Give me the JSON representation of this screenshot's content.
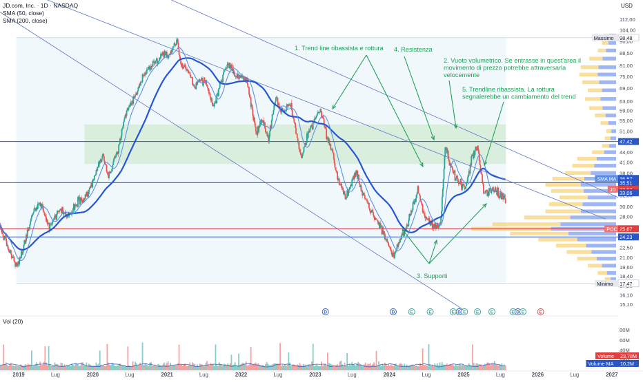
{
  "header": {
    "symbol_line": "JD.com, Inc. · 1D · NASDAQ",
    "sma50_line": "SMA (50, close)",
    "sma200_line": "SMA (200, close)",
    "currency": "USD",
    "volume_label": "Vol (20)"
  },
  "colors": {
    "up": "#26a69a",
    "down": "#ef5350",
    "sma50": "#5b8ee6",
    "sma200": "#2455d4",
    "trendline": "#5a76c8",
    "annotation": "#22a05a",
    "zone_green": "#d6ecd8",
    "zone_blue": "#e3f2f8",
    "profile_yellow": "#f7d47a",
    "profile_blue": "#7f9ef0",
    "poc_red": "#e04040",
    "level_blue": "#2a56c6"
  },
  "chart_data": {
    "type": "candlestick",
    "title": "JD.com, Inc. · 1D · NASDAQ",
    "y_axis_scale": "log",
    "ylim": [
      14.1,
      120
    ],
    "xlim": [
      "2018-10-01",
      "2027-02-01"
    ],
    "grid": false,
    "y_tick_labels": [
      "112,00",
      "104,00",
      "96,00",
      "88,50",
      "81,00",
      "75,00",
      "69,00",
      "63,00",
      "59,00",
      "55,00",
      "51,00",
      "47,00",
      "44,00",
      "41,00",
      "38,00",
      "35,00",
      "32,50",
      "30,00",
      "28,00",
      "25,80",
      "24,00",
      "22,50",
      "21,00",
      "19,60",
      "18,40",
      "17,20",
      "16,10",
      "15,10"
    ],
    "y_ticks": [
      112,
      104,
      96,
      88.5,
      81,
      75,
      69,
      63,
      59,
      55,
      51,
      47,
      44,
      41,
      38,
      35,
      32.5,
      30,
      28,
      25.8,
      24,
      22.5,
      21,
      19.6,
      18.4,
      17.2,
      16.1,
      15.1
    ],
    "x_ticks": [
      {
        "label": "2019",
        "date": "2019-01-01"
      },
      {
        "label": "Lug",
        "date": "2019-07-01"
      },
      {
        "label": "2020",
        "date": "2020-01-01"
      },
      {
        "label": "Lug",
        "date": "2020-07-01"
      },
      {
        "label": "2021",
        "date": "2021-01-01"
      },
      {
        "label": "Lug",
        "date": "2021-07-01"
      },
      {
        "label": "2022",
        "date": "2022-01-01"
      },
      {
        "label": "Lug",
        "date": "2022-07-01"
      },
      {
        "label": "2023",
        "date": "2023-01-01"
      },
      {
        "label": "Lug",
        "date": "2023-07-01"
      },
      {
        "label": "2024",
        "date": "2024-01-01"
      },
      {
        "label": "Lug",
        "date": "2024-07-01"
      },
      {
        "label": "2025",
        "date": "2025-01-01"
      },
      {
        "label": "Lug",
        "date": "2025-07-01"
      },
      {
        "label": "2026",
        "date": "2026-01-01"
      },
      {
        "label": "Lug",
        "date": "2026-07-01"
      },
      {
        "label": "2027",
        "date": "2027-01-01"
      }
    ],
    "price_path": [
      [
        "2018-10-01",
        26
      ],
      [
        "2018-11-15",
        22
      ],
      [
        "2018-12-24",
        19.5
      ],
      [
        "2019-01-20",
        22
      ],
      [
        "2019-03-15",
        29
      ],
      [
        "2019-04-20",
        31
      ],
      [
        "2019-06-01",
        26
      ],
      [
        "2019-07-20",
        29.5
      ],
      [
        "2019-09-01",
        28
      ],
      [
        "2019-10-15",
        31
      ],
      [
        "2019-12-10",
        33
      ],
      [
        "2020-01-15",
        38
      ],
      [
        "2020-02-20",
        43
      ],
      [
        "2020-03-18",
        37
      ],
      [
        "2020-05-01",
        44
      ],
      [
        "2020-06-15",
        58
      ],
      [
        "2020-08-01",
        66
      ],
      [
        "2020-09-01",
        74
      ],
      [
        "2020-10-15",
        81
      ],
      [
        "2020-12-01",
        86
      ],
      [
        "2021-01-15",
        88
      ],
      [
        "2021-02-17",
        97
      ],
      [
        "2021-03-10",
        82
      ],
      [
        "2021-04-15",
        78
      ],
      [
        "2021-05-15",
        70
      ],
      [
        "2021-06-15",
        74
      ],
      [
        "2021-07-15",
        70
      ],
      [
        "2021-08-20",
        60
      ],
      [
        "2021-09-20",
        72
      ],
      [
        "2021-10-25",
        82
      ],
      [
        "2021-12-01",
        76
      ],
      [
        "2022-01-10",
        74
      ],
      [
        "2022-02-01",
        72
      ],
      [
        "2022-03-15",
        50
      ],
      [
        "2022-04-15",
        56
      ],
      [
        "2022-05-15",
        48
      ],
      [
        "2022-06-20",
        64
      ],
      [
        "2022-07-20",
        58
      ],
      [
        "2022-09-01",
        62
      ],
      [
        "2022-10-25",
        42
      ],
      [
        "2022-11-25",
        50
      ],
      [
        "2023-01-25",
        60
      ],
      [
        "2023-02-25",
        50
      ],
      [
        "2023-03-25",
        44
      ],
      [
        "2023-04-25",
        36
      ],
      [
        "2023-06-01",
        32
      ],
      [
        "2023-07-20",
        38
      ],
      [
        "2023-08-25",
        33
      ],
      [
        "2023-10-15",
        28
      ],
      [
        "2023-11-20",
        26
      ],
      [
        "2024-01-22",
        21
      ],
      [
        "2024-02-10",
        23
      ],
      [
        "2024-03-25",
        26
      ],
      [
        "2024-05-20",
        34
      ],
      [
        "2024-06-20",
        28
      ],
      [
        "2024-08-10",
        26
      ],
      [
        "2024-09-10",
        27
      ],
      [
        "2024-10-03",
        46
      ],
      [
        "2024-10-25",
        40
      ],
      [
        "2024-12-01",
        36
      ],
      [
        "2025-01-10",
        34
      ],
      [
        "2025-02-15",
        43
      ],
      [
        "2025-03-10",
        46
      ],
      [
        "2025-04-10",
        33
      ],
      [
        "2025-05-15",
        34
      ],
      [
        "2025-06-20",
        33
      ],
      [
        "2025-07-15",
        32.5
      ],
      [
        "2025-07-28",
        31.5
      ]
    ],
    "last_price": 33.92,
    "horizontal_levels": [
      {
        "price": 47.42,
        "label": "47,42",
        "style": "solid-blue"
      },
      {
        "price": 35.51,
        "label": "35,51",
        "style": "solid-blue"
      },
      {
        "price": 25.67,
        "label": "25,67",
        "style": "solid-red"
      },
      {
        "price": 24.23,
        "label": "24,23",
        "style": "solid-blue"
      }
    ],
    "range_box": {
      "date_start": "2018-12-20",
      "date_end": "2025-07-28",
      "price_high": 98.48,
      "price_low": 17.47
    },
    "zone_green": {
      "date_start": "2020-01-01",
      "date_end": "2025-07-28",
      "price_high": 53.5,
      "price_low": 40.5
    },
    "trendlines": [
      {
        "p1": [
          "2019-01-15",
          138
        ],
        "p2": [
          "2026-12-01",
          27.5
        ]
      },
      {
        "p1": [
          "2020-10-01",
          138
        ],
        "p2": [
          "2027-02-01",
          32
        ]
      },
      {
        "p1": [
          "2018-10-01",
          118
        ],
        "p2": [
          "2025-01-01",
          14.5
        ]
      }
    ],
    "price_labels": [
      {
        "name": "massimo",
        "text": "Massimo",
        "value": "98,48",
        "price": 98.48
      },
      {
        "name": "minimo",
        "text": "Minimo",
        "value": "17,47",
        "price": 17.47
      },
      {
        "name": "level",
        "text": "",
        "value": "47,42",
        "price": 47.42
      },
      {
        "name": "sma-ma",
        "text": "SMA MA",
        "value": "36,57",
        "price": 36.57
      },
      {
        "name": "level",
        "text": "",
        "value": "35,51",
        "price": 35.51
      },
      {
        "name": "last-price",
        "text": "JD",
        "value": "33,92",
        "price": 33.92
      },
      {
        "name": "sma",
        "text": "",
        "value": "33,06",
        "price": 33.06
      },
      {
        "name": "poc",
        "text": "POC",
        "value": "25,67",
        "price": 25.67
      },
      {
        "name": "level",
        "text": "",
        "value": "24,23",
        "price": 24.23
      }
    ],
    "annotations": [
      {
        "text": "1. Trend line ribassista e rottura",
        "anchor": "label-1"
      },
      {
        "text": "4. Resistenza",
        "anchor": "label-4"
      },
      {
        "lines": [
          "2. Vuoto volumetrico. Se entrasse in quest'area il",
          "movimento di prezzo potrebbe attraversarla",
          "velocemente"
        ],
        "anchor": "label-2"
      },
      {
        "lines": [
          "5. Trendline ribassista. La rottura",
          "segnalerebbe un cambiamento del trend"
        ],
        "anchor": "label-5"
      },
      {
        "text": "3. Supporti",
        "anchor": "label-3"
      }
    ],
    "events": [
      {
        "letter": "D",
        "date": "2023-02-20"
      },
      {
        "letter": "D",
        "date": "2024-01-20"
      },
      {
        "letter": "E",
        "date": "2024-04-20"
      },
      {
        "letter": "E",
        "date": "2024-07-20"
      },
      {
        "letter": "E",
        "date": "2024-11-10"
      },
      {
        "letter": "D",
        "date": "2024-12-10"
      },
      {
        "letter": "E",
        "date": "2025-01-05"
      },
      {
        "letter": "E",
        "date": "2025-03-10"
      },
      {
        "letter": "E",
        "date": "2025-05-20"
      },
      {
        "letter": "E",
        "date": "2025-09-01"
      },
      {
        "letter": "D",
        "date": "2025-09-25"
      },
      {
        "letter": "E",
        "date": "2025-10-20"
      },
      {
        "letter": "E",
        "date": "2026-01-15"
      }
    ],
    "volume": {
      "y_ticks": [
        {
          "label": "80M",
          "value": 80
        },
        {
          "label": "60M",
          "value": 60
        },
        {
          "label": "40M",
          "value": 40
        },
        {
          "label": "20M",
          "value": 20
        }
      ],
      "ylim": [
        0,
        95
      ],
      "labels": [
        {
          "text": "Volume",
          "value": "23,78M",
          "color": "#e04040"
        },
        {
          "text": "Volume MA",
          "value": "10,2M",
          "color": "#2a56c6"
        }
      ]
    },
    "volume_profile": [
      {
        "price": 100,
        "total": 18,
        "up": 0.55
      },
      {
        "price": 95,
        "total": 20,
        "up": 0.55
      },
      {
        "price": 90,
        "total": 26,
        "up": 0.55
      },
      {
        "price": 85,
        "total": 38,
        "up": 0.5
      },
      {
        "price": 80,
        "total": 50,
        "up": 0.5
      },
      {
        "price": 76,
        "total": 52,
        "up": 0.5
      },
      {
        "price": 72,
        "total": 48,
        "up": 0.5
      },
      {
        "price": 68,
        "total": 40,
        "up": 0.5
      },
      {
        "price": 64,
        "total": 44,
        "up": 0.5
      },
      {
        "price": 60,
        "total": 38,
        "up": 0.5
      },
      {
        "price": 57,
        "total": 30,
        "up": 0.5
      },
      {
        "price": 54,
        "total": 22,
        "up": 0.5
      },
      {
        "price": 51,
        "total": 14,
        "up": 0.5
      },
      {
        "price": 48.5,
        "total": 16,
        "up": 0.5
      },
      {
        "price": 46,
        "total": 20,
        "up": 0.5
      },
      {
        "price": 44,
        "total": 34,
        "up": 0.5
      },
      {
        "price": 42,
        "total": 55,
        "up": 0.5
      },
      {
        "price": 40,
        "total": 62,
        "up": 0.5
      },
      {
        "price": 38,
        "total": 72,
        "up": 0.5
      },
      {
        "price": 36.5,
        "total": 90,
        "up": 0.5
      },
      {
        "price": 35,
        "total": 100,
        "up": 0.5
      },
      {
        "price": 33.5,
        "total": 92,
        "up": 0.5
      },
      {
        "price": 32,
        "total": 80,
        "up": 0.5
      },
      {
        "price": 30.5,
        "total": 95,
        "up": 0.5
      },
      {
        "price": 29,
        "total": 100,
        "up": 0.5
      },
      {
        "price": 27.8,
        "total": 130,
        "up": 0.5
      },
      {
        "price": 26.5,
        "total": 175,
        "up": 0.45
      },
      {
        "price": 25.67,
        "total": 205,
        "up": 0.45
      },
      {
        "price": 24.8,
        "total": 150,
        "up": 0.45
      },
      {
        "price": 23.8,
        "total": 110,
        "up": 0.5
      },
      {
        "price": 22.8,
        "total": 85,
        "up": 0.5
      },
      {
        "price": 21.8,
        "total": 70,
        "up": 0.5
      },
      {
        "price": 20.8,
        "total": 55,
        "up": 0.5
      },
      {
        "price": 19.8,
        "total": 40,
        "up": 0.5
      },
      {
        "price": 18.8,
        "total": 26,
        "up": 0.5
      },
      {
        "price": 18.0,
        "total": 16,
        "up": 0.5
      },
      {
        "price": 17.5,
        "total": 10,
        "up": 0.5
      }
    ]
  }
}
